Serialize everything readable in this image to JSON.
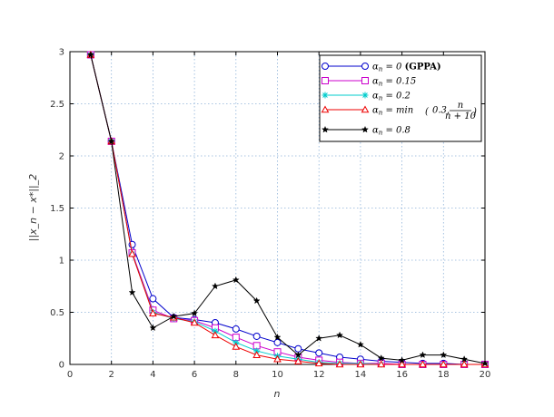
{
  "chart_data": {
    "type": "line",
    "xlabel": "n",
    "ylabel": "||x_n − x*||_2",
    "xlim": [
      0,
      20
    ],
    "ylim": [
      0,
      3
    ],
    "xticks": [
      0,
      2,
      4,
      6,
      8,
      10,
      12,
      14,
      16,
      18,
      20
    ],
    "yticks": [
      0,
      0.5,
      1,
      1.5,
      2,
      2.5,
      3
    ],
    "xtick_labels": [
      "0",
      "2",
      "4",
      "6",
      "8",
      "10",
      "12",
      "14",
      "16",
      "18",
      "20"
    ],
    "ytick_labels": [
      "0",
      "0.5",
      "1",
      "1.5",
      "2",
      "2.5",
      "3"
    ],
    "grid": true,
    "legend_position": "top-right",
    "x": [
      1,
      2,
      3,
      4,
      5,
      6,
      7,
      8,
      9,
      10,
      11,
      12,
      13,
      14,
      15,
      16,
      17,
      18,
      19,
      20
    ],
    "series": [
      {
        "name": "α_n = 0 (GPPA)",
        "color": "#0000cc",
        "marker": "circle",
        "values": [
          2.97,
          2.14,
          1.15,
          0.63,
          0.45,
          0.43,
          0.4,
          0.34,
          0.27,
          0.21,
          0.15,
          0.11,
          0.07,
          0.05,
          0.03,
          0.02,
          0.01,
          0.01,
          0.0,
          0.0
        ]
      },
      {
        "name": "α_n = 0.15",
        "color": "#cc00cc",
        "marker": "square",
        "values": [
          2.97,
          2.14,
          1.07,
          0.52,
          0.44,
          0.42,
          0.35,
          0.26,
          0.18,
          0.12,
          0.07,
          0.04,
          0.02,
          0.01,
          0.01,
          0.0,
          0.0,
          0.0,
          0.0,
          0.0
        ]
      },
      {
        "name": "α_n = 0.2",
        "color": "#00cccc",
        "marker": "star",
        "values": [
          2.97,
          2.14,
          1.06,
          0.5,
          0.44,
          0.41,
          0.32,
          0.21,
          0.13,
          0.08,
          0.05,
          0.02,
          0.01,
          0.01,
          0.0,
          0.0,
          0.0,
          0.0,
          0.0,
          0.0
        ]
      },
      {
        "name": "α_n = min(0.3, n/(n+10))",
        "color": "#ee0000",
        "marker": "triangle",
        "values": [
          2.97,
          2.14,
          1.06,
          0.49,
          0.45,
          0.4,
          0.28,
          0.17,
          0.09,
          0.05,
          0.03,
          0.01,
          0.0,
          0.0,
          0.0,
          0.0,
          0.0,
          0.0,
          0.0,
          0.0
        ]
      },
      {
        "name": "α_n = 0.8",
        "color": "#000000",
        "marker": "filled-star",
        "values": [
          2.97,
          2.14,
          0.69,
          0.35,
          0.46,
          0.49,
          0.75,
          0.81,
          0.61,
          0.26,
          0.09,
          0.25,
          0.28,
          0.19,
          0.06,
          0.04,
          0.09,
          0.09,
          0.05,
          0.01
        ]
      }
    ]
  },
  "legend": {
    "entries": [
      {
        "prefix": "α",
        "sub": "n",
        "rest": " = 0 ",
        "bold": "(GPPA)"
      },
      {
        "prefix": "α",
        "sub": "n",
        "rest": " = 0.15",
        "bold": ""
      },
      {
        "prefix": "α",
        "sub": "n",
        "rest": " = 0.2",
        "bold": ""
      },
      {
        "prefix": "α",
        "sub": "n",
        "rest": " = min",
        "bold": "",
        "formula": true
      },
      {
        "prefix": "α",
        "sub": "n",
        "rest": " = 0.8",
        "bold": ""
      }
    ],
    "min_formula": {
      "open": "(",
      "first": "0.3,",
      "num": "n",
      "den": "n + 10",
      "close": ")"
    }
  }
}
